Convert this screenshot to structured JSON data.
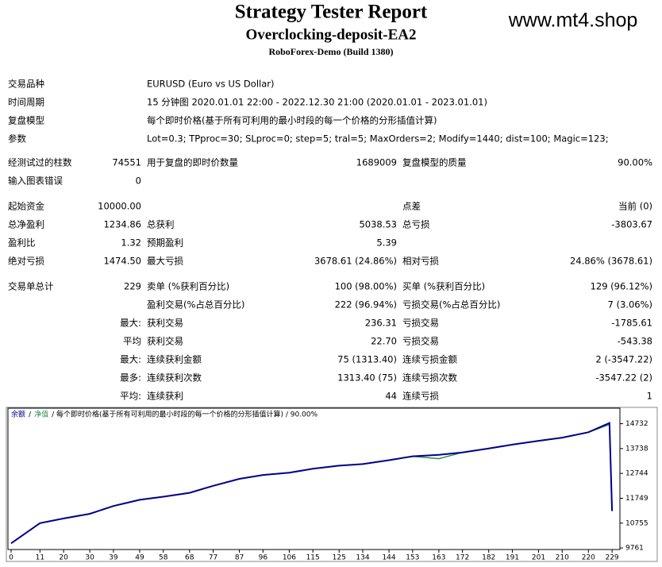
{
  "header": {
    "title": "Strategy Tester Report",
    "subtitle": "Overclocking-deposit-EA2",
    "build": "RoboForex-Demo (Build 1380)",
    "watermark": "www.mt4.shop"
  },
  "report": {
    "rows": [
      [
        "交易品种",
        null,
        "EURUSD (Euro vs US Dollar)"
      ],
      [
        "时间周期",
        null,
        "15 分钟图 2020.01.01 22:00 - 2022.12.30 21:00 (2020.01.01 - 2023.01.01)"
      ],
      [
        "复盘模型",
        null,
        "每个即时价格(基于所有可利用的最小时段的每一个价格的分形插值计算)"
      ],
      [
        "参数",
        null,
        "Lot=0.3; TPproc=30; SLproc=0; step=5; tral=5; MaxOrders=2; Modify=1440; dist=100; Magic=123;"
      ],
      [
        "经测试过的柱数",
        "74551",
        "用于复盘的即时价数量",
        "1689009",
        "复盘模型的质量",
        "90.00%"
      ],
      [
        "输入图表错误",
        "0"
      ],
      [
        "起始资金",
        "10000.00",
        null,
        null,
        "点差",
        "当前 (0)"
      ],
      [
        "总净盈利",
        "1234.86",
        "总获利",
        "5038.53",
        "总亏损",
        "-3803.67"
      ],
      [
        "盈利比",
        "1.32",
        "预期盈利",
        "5.39"
      ],
      [
        "绝对亏损",
        "1474.50",
        "最大亏损",
        "3678.61 (24.86%)",
        "相对亏损",
        "24.86% (3678.61)"
      ],
      [
        "交易单总计",
        "229",
        "卖单 (%获利百分比)",
        "100 (98.00%)",
        "买单 (%获利百分比)",
        "129 (96.12%)"
      ],
      [
        null,
        null,
        "盈利交易(%占总百分比)",
        "222 (96.94%)",
        "亏损交易(%占总百分比)",
        "7 (3.06%)"
      ],
      [
        null,
        "最大:",
        "获利交易",
        "236.31",
        "亏损交易",
        "-1785.61"
      ],
      [
        null,
        "平均",
        "获利交易",
        "22.70",
        "亏损交易",
        "-543.38"
      ],
      [
        null,
        "最大:",
        "连续获利金额",
        "75 (1313.40)",
        "连续亏损金额",
        "2 (-3547.22)"
      ],
      [
        null,
        "最多:",
        "连续获利次数",
        "1313.40 (75)",
        "连续亏损次数",
        "-3547.22 (2)"
      ],
      [
        null,
        "平均:",
        "连续获利",
        "44",
        "连续亏损",
        "1"
      ]
    ]
  },
  "chart_data": {
    "type": "line",
    "legend_text": [
      "/",
      "/ 每个即时价格(基于所有可利用的最小时段的每一个价格的分形插值计算) / 90.00%"
    ],
    "x": [
      0,
      11,
      20,
      30,
      39,
      49,
      58,
      68,
      77,
      87,
      96,
      106,
      115,
      125,
      134,
      144,
      153,
      163,
      172,
      182,
      191,
      201,
      210,
      220,
      228,
      229
    ],
    "series": [
      {
        "name": "余额",
        "color": "#00008b",
        "values": [
          9947,
          10755,
          10942,
          11128,
          11439,
          11687,
          11812,
          11967,
          12247,
          12526,
          12682,
          12775,
          12930,
          13054,
          13117,
          13272,
          13427,
          13489,
          13583,
          13738,
          13894,
          14049,
          14173,
          14391,
          14763,
          11235
        ]
      },
      {
        "name": "净值",
        "color": "#2e8b57",
        "values": [
          9947,
          10755,
          10942,
          11128,
          11439,
          11687,
          11812,
          11967,
          12247,
          12526,
          12682,
          12775,
          12930,
          13054,
          13117,
          13272,
          13427,
          13334,
          13583,
          13738,
          13894,
          14049,
          14173,
          14391,
          14700,
          11300
        ]
      }
    ],
    "xlim": [
      -1.2,
      232
    ],
    "ylim": [
      9699,
      15353
    ],
    "xticks": [
      0,
      11,
      20,
      30,
      39,
      49,
      58,
      68,
      77,
      87,
      96,
      106,
      115,
      125,
      134,
      144,
      153,
      163,
      172,
      182,
      191,
      201,
      210,
      220,
      229
    ],
    "yticks": [
      9761,
      10755,
      11749,
      12744,
      13738,
      14732
    ]
  }
}
